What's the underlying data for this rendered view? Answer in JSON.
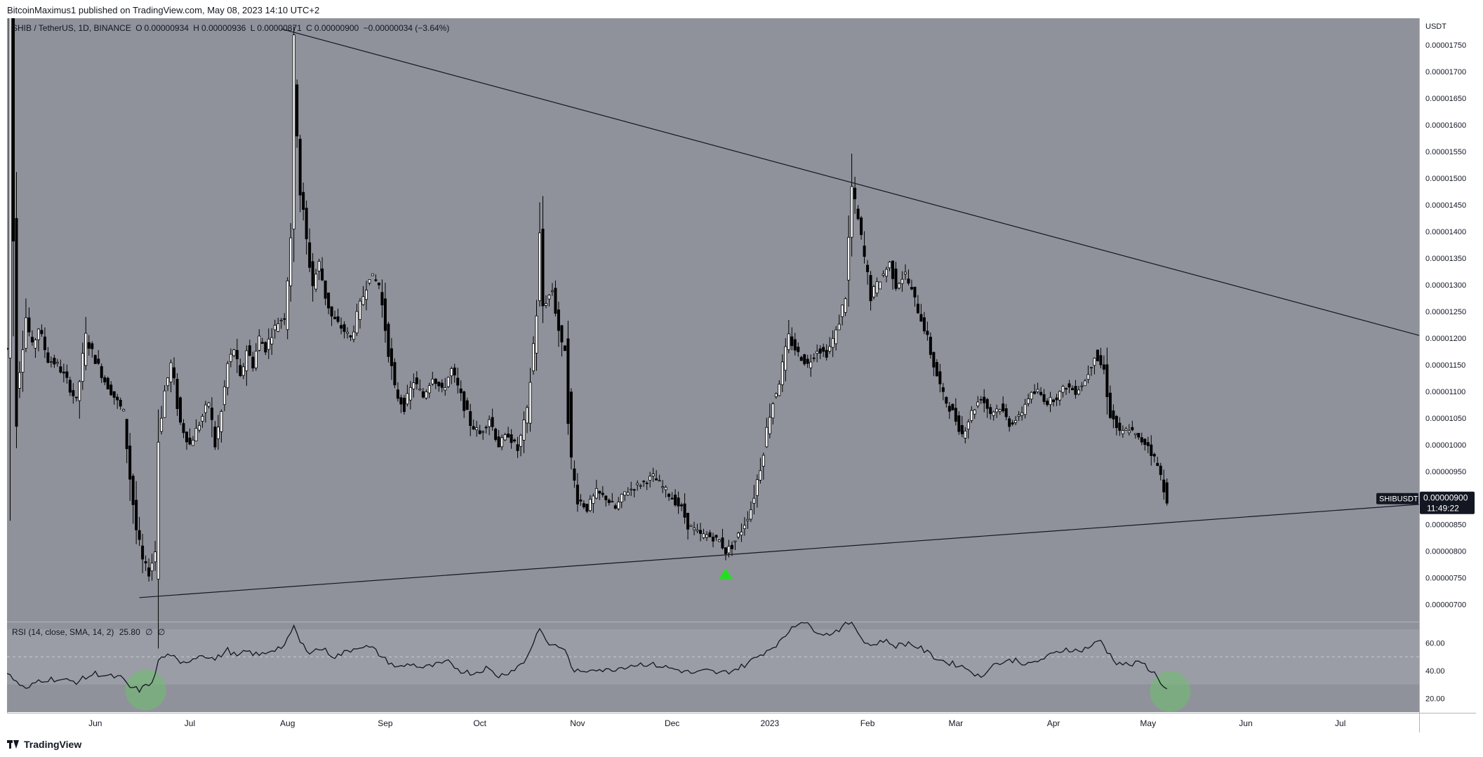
{
  "header": {
    "publisher_line": "BitcoinMaximus1 published on TradingView.com, May 08, 2023 14:10 UTC+2"
  },
  "legend": {
    "symbol": "SHIB / TetherUS, 1D, BINANCE",
    "open_label": "O",
    "open": "0.00000934",
    "high_label": "H",
    "high": "0.00000936",
    "low_label": "L",
    "low": "0.00000871",
    "close_label": "C",
    "close": "0.00000900",
    "change": "−0.00000034 (−3.64%)"
  },
  "rsi_legend": {
    "label": "RSI (14, close, SMA, 14, 2)",
    "value": "25.80",
    "extra1": "∅",
    "extra2": "∅"
  },
  "footer": {
    "brand": "TradingView"
  },
  "colors": {
    "plot_bg": "#8f929b",
    "rsi_band": "#9a9da6",
    "candle": "#000000",
    "trendline": "#131722",
    "marker": "#22e01e",
    "highlight": "#6fbf6c"
  },
  "chart_data": {
    "type": "candlestick",
    "symbol": "SHIBUSDT",
    "unit_label": "USDT",
    "price_label": "SHIBUSDT",
    "last_price": "0.00000900",
    "countdown": "11:49:22",
    "ylim": [
      6.68e-06,
      1.8e-05
    ],
    "y_ticks": [
      "0.00001750",
      "0.00001700",
      "0.00001650",
      "0.00001600",
      "0.00001550",
      "0.00001500",
      "0.00001450",
      "0.00001400",
      "0.00001350",
      "0.00001300",
      "0.00001250",
      "0.00001200",
      "0.00001150",
      "0.00001100",
      "0.00001050",
      "0.00001000",
      "0.00000950",
      "0.00000900",
      "0.00000850",
      "0.00000800",
      "0.00000750",
      "0.00000700"
    ],
    "y_tick_values": [
      1750,
      1700,
      1650,
      1600,
      1550,
      1500,
      1450,
      1400,
      1350,
      1300,
      1250,
      1200,
      1150,
      1100,
      1050,
      1000,
      950,
      900,
      850,
      800,
      750,
      700
    ],
    "x_labels": [
      "Jun",
      "Jul",
      "Aug",
      "Sep",
      "Oct",
      "Nov",
      "Dec",
      "2023",
      "Feb",
      "Mar",
      "Apr",
      "May",
      "Jun",
      "Jul"
    ],
    "x_label_days": [
      0,
      30,
      61,
      92,
      122,
      153,
      183,
      214,
      245,
      273,
      304,
      334,
      365,
      395
    ],
    "x_start_day": -28,
    "x_end_day": 420,
    "price_anchors": [
      [
        -28,
        1180
      ],
      [
        -27,
        1800
      ],
      [
        -26,
        1400
      ],
      [
        -25,
        1100
      ],
      [
        -22,
        1240
      ],
      [
        -20,
        1180
      ],
      [
        -18,
        1220
      ],
      [
        -15,
        1160
      ],
      [
        -12,
        1150
      ],
      [
        -9,
        1120
      ],
      [
        -6,
        1080
      ],
      [
        -3,
        1200
      ],
      [
        0,
        1160
      ],
      [
        3,
        1120
      ],
      [
        6,
        1090
      ],
      [
        9,
        1060
      ],
      [
        11,
        940
      ],
      [
        13,
        840
      ],
      [
        15,
        780
      ],
      [
        17,
        760
      ],
      [
        19,
        800
      ],
      [
        20,
        1020
      ],
      [
        22,
        1100
      ],
      [
        24,
        1150
      ],
      [
        27,
        1040
      ],
      [
        30,
        1000
      ],
      [
        33,
        1040
      ],
      [
        36,
        1080
      ],
      [
        38,
        1000
      ],
      [
        40,
        1060
      ],
      [
        42,
        1150
      ],
      [
        44,
        1180
      ],
      [
        46,
        1120
      ],
      [
        48,
        1180
      ],
      [
        50,
        1150
      ],
      [
        52,
        1200
      ],
      [
        54,
        1180
      ],
      [
        56,
        1210
      ],
      [
        58,
        1230
      ],
      [
        60,
        1240
      ],
      [
        62,
        1400
      ],
      [
        63,
        1700
      ],
      [
        64,
        1600
      ],
      [
        65,
        1480
      ],
      [
        67,
        1380
      ],
      [
        69,
        1300
      ],
      [
        71,
        1340
      ],
      [
        73,
        1280
      ],
      [
        75,
        1240
      ],
      [
        78,
        1220
      ],
      [
        81,
        1200
      ],
      [
        84,
        1260
      ],
      [
        87,
        1320
      ],
      [
        90,
        1300
      ],
      [
        92,
        1220
      ],
      [
        95,
        1100
      ],
      [
        98,
        1070
      ],
      [
        101,
        1120
      ],
      [
        104,
        1090
      ],
      [
        107,
        1130
      ],
      [
        110,
        1100
      ],
      [
        113,
        1140
      ],
      [
        116,
        1090
      ],
      [
        119,
        1040
      ],
      [
        122,
        1020
      ],
      [
        125,
        1050
      ],
      [
        128,
        1000
      ],
      [
        131,
        1020
      ],
      [
        134,
        990
      ],
      [
        137,
        1060
      ],
      [
        140,
        1250
      ],
      [
        141,
        1380
      ],
      [
        142,
        1260
      ],
      [
        145,
        1290
      ],
      [
        148,
        1180
      ],
      [
        149,
        1180
      ],
      [
        151,
        960
      ],
      [
        153,
        900
      ],
      [
        156,
        880
      ],
      [
        159,
        910
      ],
      [
        162,
        900
      ],
      [
        165,
        880
      ],
      [
        168,
        910
      ],
      [
        171,
        920
      ],
      [
        174,
        930
      ],
      [
        177,
        940
      ],
      [
        180,
        920
      ],
      [
        183,
        900
      ],
      [
        186,
        880
      ],
      [
        188,
        850
      ],
      [
        190,
        840
      ],
      [
        192,
        830
      ],
      [
        194,
        830
      ],
      [
        196,
        825
      ],
      [
        198,
        820
      ],
      [
        200,
        800
      ],
      [
        202,
        810
      ],
      [
        205,
        840
      ],
      [
        208,
        880
      ],
      [
        211,
        960
      ],
      [
        214,
        1060
      ],
      [
        217,
        1120
      ],
      [
        220,
        1200
      ],
      [
        223,
        1170
      ],
      [
        226,
        1150
      ],
      [
        229,
        1180
      ],
      [
        232,
        1170
      ],
      [
        235,
        1210
      ],
      [
        238,
        1280
      ],
      [
        240,
        1480
      ],
      [
        242,
        1420
      ],
      [
        244,
        1350
      ],
      [
        246,
        1280
      ],
      [
        248,
        1300
      ],
      [
        250,
        1320
      ],
      [
        252,
        1340
      ],
      [
        254,
        1300
      ],
      [
        257,
        1320
      ],
      [
        260,
        1270
      ],
      [
        263,
        1220
      ],
      [
        266,
        1150
      ],
      [
        269,
        1090
      ],
      [
        272,
        1060
      ],
      [
        275,
        1020
      ],
      [
        278,
        1060
      ],
      [
        281,
        1090
      ],
      [
        284,
        1060
      ],
      [
        287,
        1070
      ],
      [
        290,
        1040
      ],
      [
        293,
        1050
      ],
      [
        296,
        1090
      ],
      [
        299,
        1100
      ],
      [
        302,
        1080
      ],
      [
        305,
        1090
      ],
      [
        308,
        1110
      ],
      [
        311,
        1100
      ],
      [
        314,
        1120
      ],
      [
        317,
        1170
      ],
      [
        320,
        1140
      ],
      [
        322,
        1060
      ],
      [
        325,
        1020
      ],
      [
        328,
        1030
      ],
      [
        331,
        1010
      ],
      [
        334,
        1000
      ],
      [
        337,
        960
      ],
      [
        339,
        920
      ],
      [
        340,
        900
      ]
    ],
    "resistance_line": {
      "from": [
        59,
        1780
      ],
      "to": [
        420,
        1205
      ]
    },
    "support_line": {
      "from": [
        14,
        713
      ],
      "to": [
        420,
        888
      ]
    },
    "marker_day": 200,
    "marker_price": 760,
    "rsi": {
      "ylim": [
        10,
        75
      ],
      "ticks": [
        "60.00",
        "40.00",
        "20.00"
      ],
      "tick_values": [
        60,
        40,
        20
      ],
      "band": [
        30,
        70
      ],
      "midline": 50,
      "anchors": [
        [
          -28,
          38
        ],
        [
          -25,
          32
        ],
        [
          -22,
          26
        ],
        [
          -18,
          33
        ],
        [
          -14,
          34
        ],
        [
          -10,
          33
        ],
        [
          -6,
          32
        ],
        [
          -3,
          35
        ],
        [
          0,
          38
        ],
        [
          4,
          36
        ],
        [
          8,
          35
        ],
        [
          11,
          28
        ],
        [
          14,
          26
        ],
        [
          17,
          30
        ],
        [
          19,
          36
        ],
        [
          20,
          48
        ],
        [
          24,
          52
        ],
        [
          27,
          44
        ],
        [
          30,
          48
        ],
        [
          34,
          52
        ],
        [
          38,
          48
        ],
        [
          42,
          55
        ],
        [
          45,
          50
        ],
        [
          48,
          54
        ],
        [
          52,
          51
        ],
        [
          56,
          55
        ],
        [
          60,
          58
        ],
        [
          62,
          66
        ],
        [
          63,
          73
        ],
        [
          65,
          60
        ],
        [
          68,
          54
        ],
        [
          72,
          56
        ],
        [
          76,
          50
        ],
        [
          80,
          54
        ],
        [
          84,
          58
        ],
        [
          88,
          56
        ],
        [
          92,
          48
        ],
        [
          96,
          42
        ],
        [
          100,
          45
        ],
        [
          104,
          42
        ],
        [
          108,
          44
        ],
        [
          112,
          46
        ],
        [
          116,
          40
        ],
        [
          120,
          38
        ],
        [
          124,
          42
        ],
        [
          128,
          36
        ],
        [
          132,
          40
        ],
        [
          136,
          46
        ],
        [
          139,
          60
        ],
        [
          141,
          72
        ],
        [
          143,
          60
        ],
        [
          146,
          58
        ],
        [
          149,
          56
        ],
        [
          151,
          42
        ],
        [
          154,
          38
        ],
        [
          158,
          42
        ],
        [
          162,
          40
        ],
        [
          166,
          42
        ],
        [
          170,
          44
        ],
        [
          174,
          45
        ],
        [
          178,
          44
        ],
        [
          182,
          42
        ],
        [
          186,
          40
        ],
        [
          190,
          38
        ],
        [
          194,
          40
        ],
        [
          198,
          38
        ],
        [
          202,
          40
        ],
        [
          206,
          44
        ],
        [
          210,
          50
        ],
        [
          214,
          56
        ],
        [
          218,
          62
        ],
        [
          221,
          72
        ],
        [
          224,
          76
        ],
        [
          228,
          70
        ],
        [
          232,
          66
        ],
        [
          236,
          70
        ],
        [
          240,
          76
        ],
        [
          243,
          64
        ],
        [
          246,
          58
        ],
        [
          250,
          62
        ],
        [
          254,
          58
        ],
        [
          258,
          60
        ],
        [
          262,
          56
        ],
        [
          266,
          50
        ],
        [
          270,
          46
        ],
        [
          274,
          44
        ],
        [
          278,
          40
        ],
        [
          281,
          34
        ],
        [
          284,
          44
        ],
        [
          288,
          46
        ],
        [
          292,
          48
        ],
        [
          296,
          44
        ],
        [
          300,
          48
        ],
        [
          304,
          52
        ],
        [
          308,
          56
        ],
        [
          312,
          54
        ],
        [
          316,
          58
        ],
        [
          319,
          62
        ],
        [
          321,
          54
        ],
        [
          324,
          46
        ],
        [
          328,
          44
        ],
        [
          332,
          46
        ],
        [
          334,
          42
        ],
        [
          336,
          38
        ],
        [
          338,
          32
        ],
        [
          340,
          26
        ]
      ]
    }
  }
}
